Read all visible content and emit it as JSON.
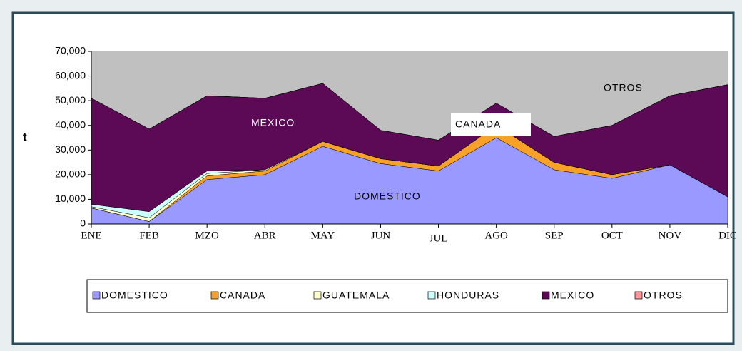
{
  "chart_data": {
    "type": "stacked_area",
    "ylabel": "t",
    "categories": [
      "ENE",
      "FEB",
      "MZO",
      "ABR",
      "MAY",
      "JUN",
      "JUL",
      "AGO",
      "SEP",
      "OCT",
      "NOV",
      "DIC"
    ],
    "series": [
      {
        "name": "DOMESTICO",
        "color": "#9999ff",
        "values": [
          6500,
          1000,
          18000,
          20000,
          31500,
          24500,
          21500,
          35000,
          22000,
          18500,
          24000,
          11000
        ]
      },
      {
        "name": "CANADA",
        "color": "#f7a128",
        "values": [
          0,
          0,
          1500,
          1500,
          2000,
          2000,
          2000,
          5000,
          3000,
          1500,
          0,
          0
        ]
      },
      {
        "name": "GUATEMALA",
        "color": "#ffffcc",
        "values": [
          500,
          1500,
          1000,
          500,
          0,
          0,
          0,
          0,
          0,
          0,
          0,
          0
        ]
      },
      {
        "name": "HONDURAS",
        "color": "#ccffff",
        "values": [
          1000,
          2500,
          1000,
          0,
          0,
          0,
          0,
          0,
          0,
          0,
          0,
          0
        ]
      },
      {
        "name": "MEXICO",
        "color": "#5c0a56",
        "values": [
          43000,
          33500,
          30500,
          29000,
          23500,
          11500,
          10500,
          9000,
          10500,
          20000,
          28000,
          45500
        ]
      },
      {
        "name": "OTROS",
        "color": "#ff9999",
        "values": [
          0,
          0,
          0,
          0,
          0,
          0,
          0,
          0,
          0,
          0,
          0,
          0
        ]
      }
    ],
    "annotations": [
      "HONDURAS",
      "MEXICO",
      "CANADA",
      "DOMESTICO",
      "OTROS"
    ],
    "ylim": [
      0,
      70000
    ],
    "yticks": [
      0,
      {
        "value": 10000,
        "label": "10,000"
      },
      {
        "value": 20000,
        "label": "20,000"
      },
      {
        "value": 30000,
        "label": "30,000"
      },
      {
        "value": 40000,
        "label": "40,000"
      },
      {
        "value": 50000,
        "label": "50,000"
      },
      {
        "value": 60000,
        "label": "60,000"
      },
      {
        "value": 70000,
        "label": "70,000"
      }
    ],
    "plot_background": "#c0c0c0"
  }
}
